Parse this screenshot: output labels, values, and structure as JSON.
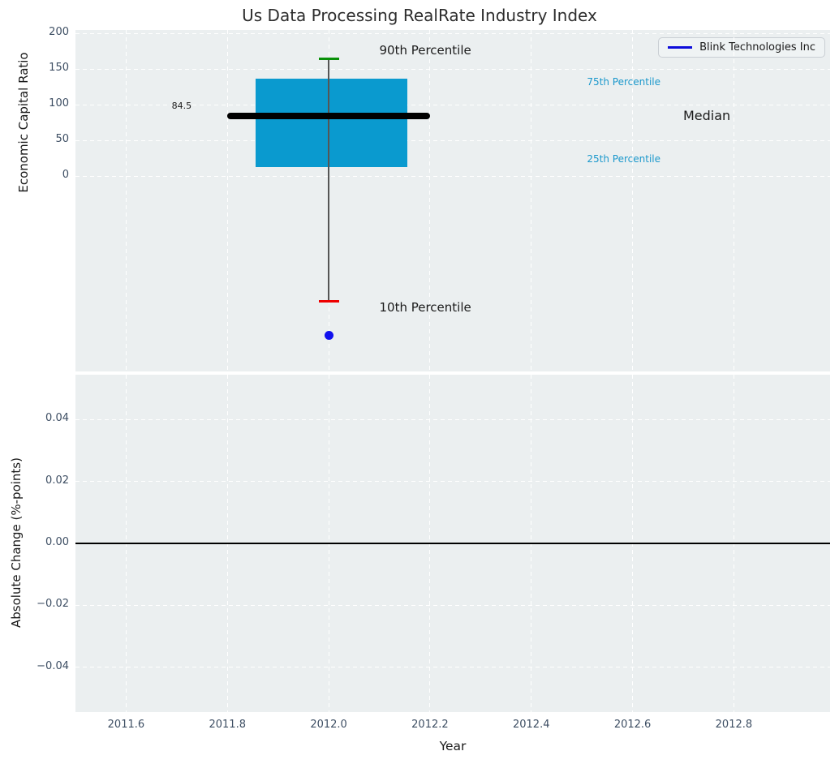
{
  "figure": {
    "title": "Us Data Processing RealRate Industry Index",
    "plot_background": "#ebeff0",
    "grid_color": "#ffffff",
    "tick_color": "#3d4e63"
  },
  "legend": {
    "label": "Blink Technologies Inc",
    "line_color": "#0c0cdb"
  },
  "chart_data": [
    {
      "type": "boxplot",
      "ylabel": "Economic Capital Ratio",
      "xlim": [
        2011.5,
        2012.99
      ],
      "ylim": [
        -274,
        205
      ],
      "grid": true,
      "legend_position": "upper right",
      "yticks": [
        {
          "v": 200,
          "label": "200"
        },
        {
          "v": 150,
          "label": "150"
        },
        {
          "v": 100,
          "label": "100"
        },
        {
          "v": 50,
          "label": "50"
        },
        {
          "v": 0,
          "label": "0"
        }
      ],
      "box": {
        "x_center": 2012.0,
        "x_left": 2011.855,
        "x_right": 2012.155,
        "p90": 165,
        "p75": 137,
        "median": 84.5,
        "p25": 12.5,
        "p10": -176,
        "median_line": {
          "x_left": 2011.8,
          "x_right": 2012.2,
          "color": "#000000"
        },
        "cap_x_left": 2011.98,
        "cap_x_right": 2012.02,
        "box_color": "#0a9acf",
        "p90_color": "#089008",
        "p10_color": "#ee0000",
        "whisker_color": "#555555",
        "company_point": {
          "name": "Blink Technologies Inc",
          "x": 2012.0,
          "y": -223,
          "color": "#1111ee"
        }
      },
      "annotations": [
        {
          "id": "p90-label",
          "text": "90th Percentile",
          "x": 2012.1,
          "y": 174,
          "color": "#1a1a1a",
          "size": 15
        },
        {
          "id": "p75-label",
          "text": "75th Percentile",
          "x": 2012.51,
          "y": 130,
          "color": "#1b98cc",
          "size": 12
        },
        {
          "id": "median-label",
          "text": "Median",
          "x": 2012.7,
          "y": 83,
          "color": "#1a1a1a",
          "size": 16
        },
        {
          "id": "p25-label",
          "text": "25th Percentile",
          "x": 2012.51,
          "y": 22,
          "color": "#1b98cc",
          "size": 12
        },
        {
          "id": "p10-label",
          "text": "10th Percentile",
          "x": 2012.1,
          "y": -186,
          "color": "#1a1a1a",
          "size": 15
        },
        {
          "id": "median-value",
          "text": "84.5",
          "x": 2011.69,
          "y": 97,
          "color": "#1a1a1a",
          "size": 11
        }
      ]
    },
    {
      "type": "line",
      "ylabel": "Absolute Change (%-points)",
      "xlabel": "Year",
      "xlim": [
        2011.5,
        2012.99
      ],
      "ylim": [
        -0.0544,
        0.0544
      ],
      "grid": true,
      "yticks": [
        {
          "v": 0.04,
          "label": "0.04"
        },
        {
          "v": 0.02,
          "label": "0.02"
        },
        {
          "v": 0.0,
          "label": "0.00"
        },
        {
          "v": -0.02,
          "label": "−0.02"
        },
        {
          "v": -0.04,
          "label": "−0.04"
        }
      ],
      "zero_line": {
        "y": 0.0,
        "color": "#000000"
      }
    }
  ],
  "xticks": [
    {
      "v": 2011.6,
      "label": "2011.6"
    },
    {
      "v": 2011.8,
      "label": "2011.8"
    },
    {
      "v": 2012.0,
      "label": "2012.0"
    },
    {
      "v": 2012.2,
      "label": "2012.2"
    },
    {
      "v": 2012.4,
      "label": "2012.4"
    },
    {
      "v": 2012.6,
      "label": "2012.6"
    },
    {
      "v": 2012.8,
      "label": "2012.8"
    }
  ]
}
